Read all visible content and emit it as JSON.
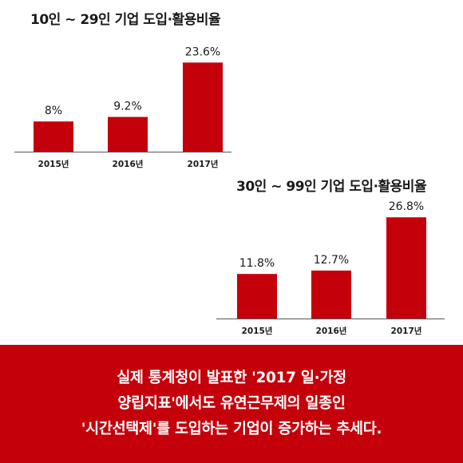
{
  "chart_data": [
    {
      "type": "bar",
      "title": "10인 ~ 29인 기업  도입·활용비율",
      "categories": [
        "2015년",
        "2016년",
        "2017년"
      ],
      "values": [
        8,
        9.2,
        23.6
      ],
      "value_labels": [
        "8%",
        "9.2%",
        "23.6%"
      ],
      "bar_color": "#c4000b",
      "grid": false,
      "legend": "none"
    },
    {
      "type": "bar",
      "title": "30인 ~ 99인 기업 도입·활용비율",
      "categories": [
        "2015년",
        "2016년",
        "2017년"
      ],
      "values": [
        11.8,
        12.7,
        26.8
      ],
      "value_labels": [
        "11.8%",
        "12.7%",
        "26.8%"
      ],
      "bar_color": "#c4000b",
      "grid": false,
      "legend": "none"
    }
  ],
  "footer": {
    "lines": [
      "실제 통계청이 발표한 '2017 일·가정",
      "양립지표'에서도 유연근무제의 일종인",
      "'시간선택제'를 도입하는 기업이 증가하는 추세다."
    ],
    "background": "#c4000b",
    "text_color": "#ffffff"
  }
}
